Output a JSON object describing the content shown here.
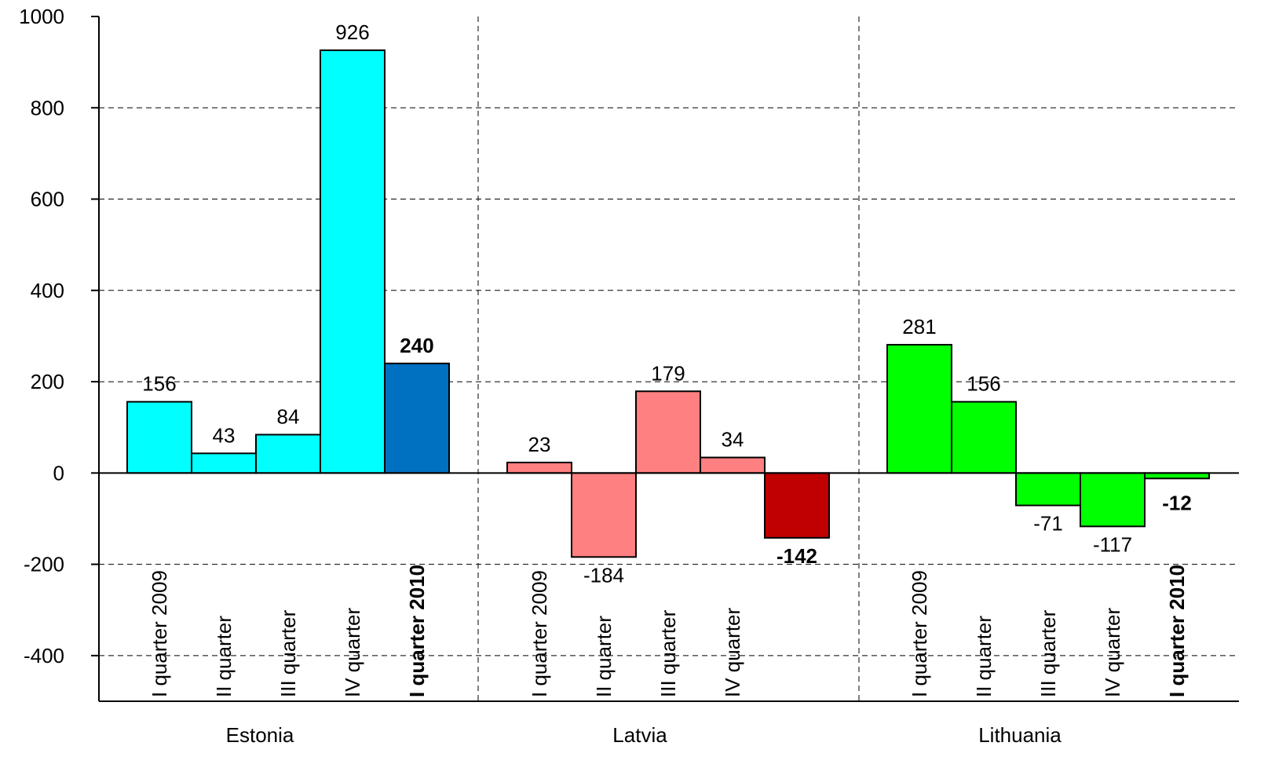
{
  "chart_data": {
    "type": "bar",
    "title": "",
    "xlabel": "",
    "ylabel": "",
    "ylim": [
      -500,
      1000
    ],
    "yticks": [
      -400,
      -200,
      0,
      200,
      400,
      600,
      800,
      1000
    ],
    "grid": true,
    "groups": [
      {
        "name": "Estonia",
        "bars": [
          {
            "label": "I quarter 2009",
            "value": 156,
            "color": "#00FFFF",
            "highlight": false
          },
          {
            "label": "II quarter",
            "value": 43,
            "color": "#00FFFF",
            "highlight": false
          },
          {
            "label": "III quarter",
            "value": 84,
            "color": "#00FFFF",
            "highlight": false
          },
          {
            "label": "IV quarter",
            "value": 926,
            "color": "#00FFFF",
            "highlight": false
          },
          {
            "label": "I quarter 2010",
            "value": 240,
            "color": "#0070C0",
            "highlight": true
          }
        ]
      },
      {
        "name": "Latvia",
        "bars": [
          {
            "label": "I quarter 2009",
            "value": 23,
            "color": "#FF8080",
            "highlight": false
          },
          {
            "label": "II quarter",
            "value": -184,
            "color": "#FF8080",
            "highlight": false
          },
          {
            "label": "III quarter",
            "value": 179,
            "color": "#FF8080",
            "highlight": false
          },
          {
            "label": "IV quarter",
            "value": 34,
            "color": "#FF8080",
            "highlight": false
          },
          {
            "label": "",
            "value": -142,
            "color": "#C00000",
            "highlight": true
          }
        ]
      },
      {
        "name": "Lithuania",
        "bars": [
          {
            "label": "I quarter 2009",
            "value": 281,
            "color": "#00FF00",
            "highlight": false
          },
          {
            "label": "II quarter",
            "value": 156,
            "color": "#00FF00",
            "highlight": false
          },
          {
            "label": "III quarter",
            "value": -71,
            "color": "#00FF00",
            "highlight": false
          },
          {
            "label": "IV quarter",
            "value": -117,
            "color": "#00FF00",
            "highlight": false
          },
          {
            "label": "I quarter 2010",
            "value": -12,
            "color": "#00FF00",
            "highlight": true
          }
        ]
      }
    ]
  }
}
